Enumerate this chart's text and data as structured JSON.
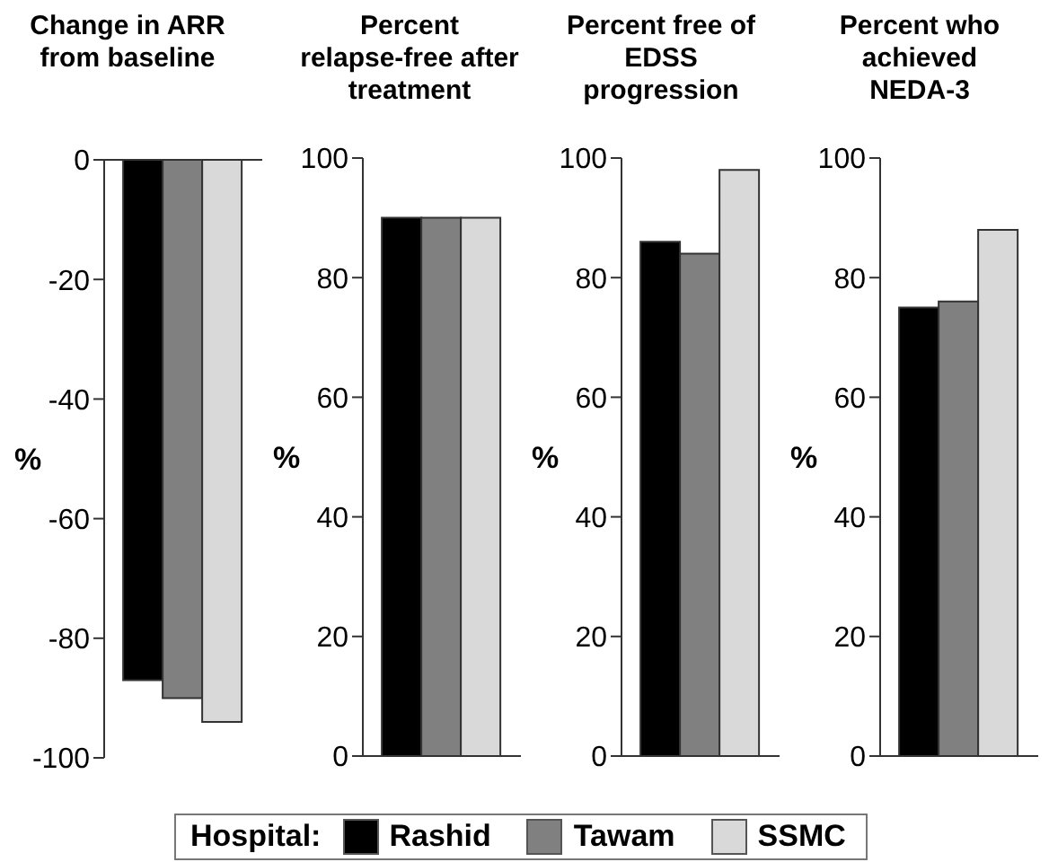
{
  "chart_data": [
    {
      "type": "bar",
      "title": "Change in ARR from baseline",
      "ylabel": "%",
      "categories": [
        null
      ],
      "ylim": [
        -100,
        0
      ],
      "yticks": [
        -100,
        -80,
        -60,
        -40,
        -20,
        0
      ],
      "legend": "bottom",
      "legend_title": "Hospital:",
      "series": [
        {
          "name": "Rashid",
          "color": "#000000",
          "values": [
            -87
          ]
        },
        {
          "name": "Tawam",
          "color": "#808080",
          "values": [
            -90
          ]
        },
        {
          "name": "SSMC",
          "color": "#d9d9d9",
          "values": [
            -94
          ]
        }
      ]
    },
    {
      "type": "bar",
      "title": "Percent relapse-free after treatment",
      "ylabel": "%",
      "categories": [
        null
      ],
      "ylim": [
        0,
        100
      ],
      "yticks": [
        0,
        20,
        40,
        60,
        80,
        100
      ],
      "series": [
        {
          "color": "#000000",
          "values": [
            90
          ]
        },
        {
          "color": "#808080",
          "values": [
            90
          ]
        },
        {
          "color": "#d9d9d9",
          "values": [
            90
          ]
        }
      ]
    },
    {
      "type": "bar",
      "title": "Percent free of EDSS progression",
      "ylabel": "%",
      "categories": [
        null
      ],
      "ylim": [
        0,
        100
      ],
      "yticks": [
        0,
        20,
        40,
        60,
        80,
        100
      ],
      "series": [
        {
          "color": "#000000",
          "values": [
            86
          ]
        },
        {
          "color": "#808080",
          "values": [
            84
          ]
        },
        {
          "color": "#d9d9d9",
          "values": [
            98
          ]
        }
      ]
    },
    {
      "type": "bar",
      "title": "Percent who achieved NEDA-3",
      "ylabel": "%",
      "categories": [
        null
      ],
      "ylim": [
        0,
        100
      ],
      "yticks": [
        0,
        20,
        40,
        60,
        80,
        100
      ],
      "series": [
        {
          "color": "#000000",
          "values": [
            75
          ]
        },
        {
          "color": "#808080",
          "values": [
            76
          ]
        },
        {
          "color": "#d9d9d9",
          "values": [
            88
          ]
        }
      ]
    }
  ]
}
